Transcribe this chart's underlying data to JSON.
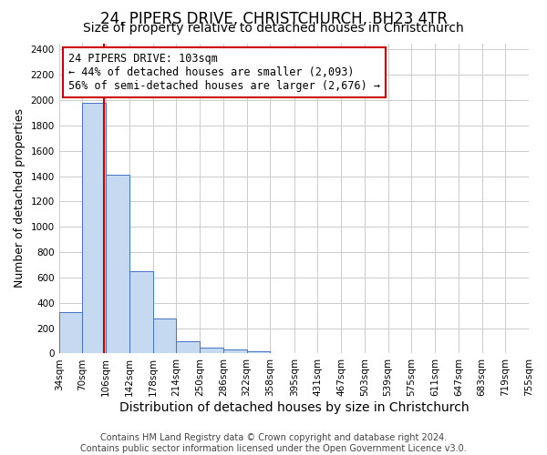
{
  "title": "24, PIPERS DRIVE, CHRISTCHURCH, BH23 4TR",
  "subtitle": "Size of property relative to detached houses in Christchurch",
  "xlabel": "Distribution of detached houses by size in Christchurch",
  "ylabel": "Number of detached properties",
  "footer_line1": "Contains HM Land Registry data © Crown copyright and database right 2024.",
  "footer_line2": "Contains public sector information licensed under the Open Government Licence v3.0.",
  "bin_labels": [
    "34sqm",
    "70sqm",
    "106sqm",
    "142sqm",
    "178sqm",
    "214sqm",
    "250sqm",
    "286sqm",
    "322sqm",
    "358sqm",
    "395sqm",
    "431sqm",
    "467sqm",
    "503sqm",
    "539sqm",
    "575sqm",
    "611sqm",
    "647sqm",
    "683sqm",
    "719sqm",
    "755sqm"
  ],
  "bin_edges": [
    34,
    70,
    106,
    142,
    178,
    214,
    250,
    286,
    322,
    358,
    395,
    431,
    467,
    503,
    539,
    575,
    611,
    647,
    683,
    719,
    755
  ],
  "bar_heights": [
    325,
    1980,
    1410,
    650,
    275,
    100,
    45,
    30,
    20,
    0,
    0,
    0,
    0,
    0,
    0,
    0,
    0,
    0,
    0,
    0
  ],
  "bar_color": "#c5d9f0",
  "bar_edge_color": "#4472c4",
  "vline_x": 103,
  "vline_color": "#cc0000",
  "annotation_text_line1": "24 PIPERS DRIVE: 103sqm",
  "annotation_text_line2": "← 44% of detached houses are smaller (2,093)",
  "annotation_text_line3": "56% of semi-detached houses are larger (2,676) →",
  "annotation_box_color": "#ffffff",
  "annotation_box_edge_color": "#cc0000",
  "ylim": [
    0,
    2450
  ],
  "yticks": [
    0,
    200,
    400,
    600,
    800,
    1000,
    1200,
    1400,
    1600,
    1800,
    2000,
    2200,
    2400
  ],
  "title_fontsize": 12,
  "subtitle_fontsize": 10,
  "xlabel_fontsize": 10,
  "ylabel_fontsize": 9,
  "tick_fontsize": 7.5,
  "annotation_fontsize": 8.5,
  "footer_fontsize": 7,
  "background_color": "#ffffff",
  "grid_color": "#cccccc"
}
